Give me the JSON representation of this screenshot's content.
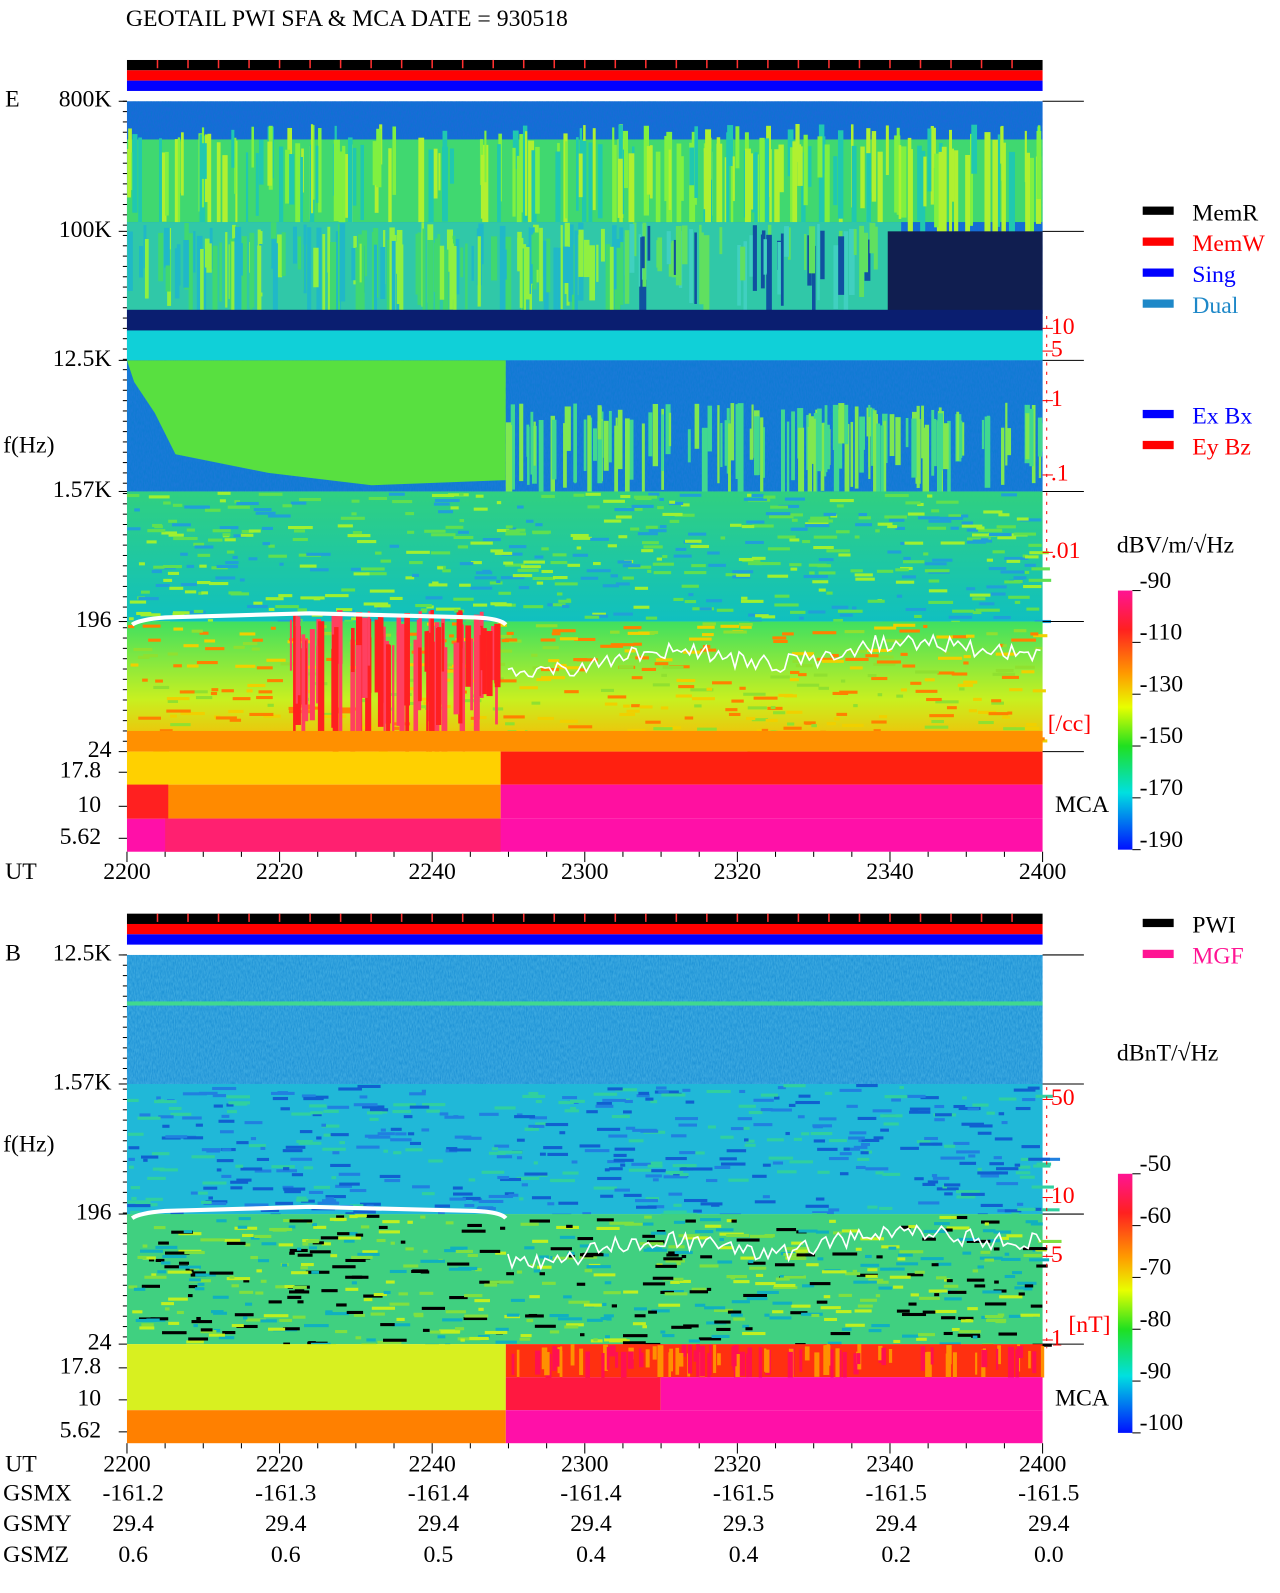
{
  "title": "GEOTAIL  PWI SFA & MCA   DATE = 930518",
  "panels": [
    {
      "label": "E",
      "ylabel": "f(Hz)",
      "yticks": [
        "800K",
        "100K",
        "12.5K",
        "1.57K",
        "196",
        "24"
      ],
      "mca_ticks": [
        "17.8",
        "10",
        "5.62"
      ],
      "mca_label": "MCA",
      "right_ticks": [
        "10",
        "5",
        "1",
        ".1",
        ".01"
      ],
      "right_unit": "[/cc]",
      "xlabel": "UT",
      "xticks": [
        "2200",
        "2220",
        "2240",
        "2300",
        "2320",
        "2340",
        "2400"
      ],
      "legend": [
        {
          "name": "MemR",
          "color": "#000000"
        },
        {
          "name": "MemW",
          "color": "#ff0000"
        },
        {
          "name": "Sing",
          "color": "#0000ff"
        },
        {
          "name": "Dual",
          "color": "#1e88c8"
        }
      ],
      "legend2": [
        {
          "name": "Ex Bx",
          "color": "#0000ff"
        },
        {
          "name": "Ey Bz",
          "color": "#ff0000"
        }
      ],
      "colorbar_title": "dBV/m/√Hz",
      "colorbar_ticks": [
        "-90",
        "-110",
        "-130",
        "-150",
        "-170",
        "-190"
      ]
    },
    {
      "label": "B",
      "ylabel": "f(Hz)",
      "yticks": [
        "12.5K",
        "1.57K",
        "196",
        "24"
      ],
      "mca_ticks": [
        "17.8",
        "10",
        "5.62"
      ],
      "mca_label": "MCA",
      "right_ticks": [
        "50",
        "10",
        "5",
        "1"
      ],
      "right_unit": "[nT]",
      "xlabel": "UT",
      "xticks": [
        "2200",
        "2220",
        "2240",
        "2300",
        "2320",
        "2340",
        "2400"
      ],
      "legend": [
        {
          "name": "PWI",
          "color": "#000000"
        },
        {
          "name": "MGF",
          "color": "#ff1493"
        }
      ],
      "colorbar_title": "dBnT/√Hz",
      "colorbar_ticks": [
        "-50",
        "-60",
        "-70",
        "-80",
        "-90",
        "-100"
      ]
    }
  ],
  "orbit": [
    {
      "name": "GSMX",
      "values": [
        "-161.2",
        "-161.3",
        "-161.4",
        "-161.4",
        "-161.5",
        "-161.5",
        "-161.5"
      ]
    },
    {
      "name": "GSMY",
      "values": [
        "29.4",
        "29.4",
        "29.4",
        "29.4",
        "29.3",
        "29.4",
        "29.4"
      ]
    },
    {
      "name": "GSMZ",
      "values": [
        "0.6",
        "0.6",
        "0.5",
        "0.4",
        "0.4",
        "0.2",
        "0.0"
      ]
    }
  ]
}
